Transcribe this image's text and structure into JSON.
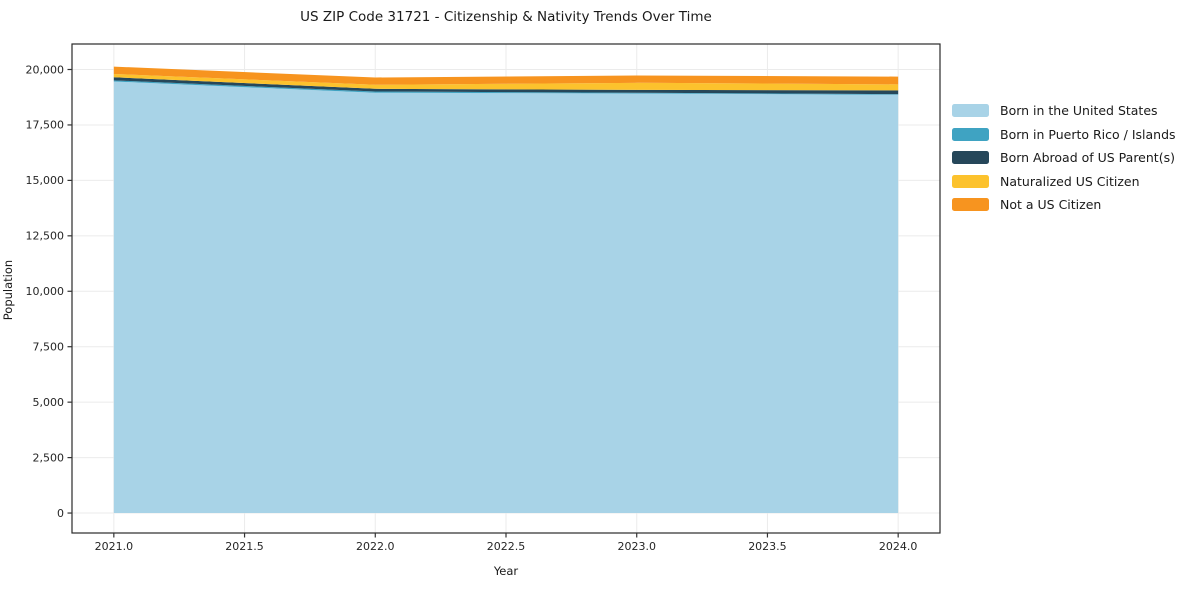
{
  "title": "US ZIP Code 31721 - Citizenship & Nativity Trends Over Time",
  "chart_data": {
    "type": "area",
    "stacked": true,
    "title": "US ZIP Code 31721 - Citizenship & Nativity Trends Over Time",
    "xlabel": "Year",
    "ylabel": "Population",
    "x": [
      2021,
      2022,
      2023,
      2024
    ],
    "series": [
      {
        "name": "Born in the United States",
        "color": "#a8d3e7",
        "values": [
          19460,
          18950,
          18920,
          18860
        ]
      },
      {
        "name": "Born in Puerto Rico / Islands",
        "color": "#3fa3c2",
        "values": [
          50,
          60,
          30,
          30
        ]
      },
      {
        "name": "Born Abroad of US Parent(s)",
        "color": "#26475a",
        "values": [
          140,
          120,
          130,
          170
        ]
      },
      {
        "name": "Naturalized US Citizen",
        "color": "#fcc22d",
        "values": [
          150,
          180,
          320,
          270
        ]
      },
      {
        "name": "Not a US Citizen",
        "color": "#f7941f",
        "values": [
          330,
          330,
          330,
          350
        ]
      }
    ],
    "x_ticks": [
      "2021.0",
      "2021.5",
      "2022.0",
      "2022.5",
      "2023.0",
      "2023.5",
      "2024.0"
    ],
    "x_tick_values": [
      2021,
      2021.5,
      2022,
      2022.5,
      2023,
      2023.5,
      2024
    ],
    "y_ticks": [
      "0",
      "2,500",
      "5,000",
      "7,500",
      "10,000",
      "12,500",
      "15,000",
      "17,500",
      "20,000"
    ],
    "y_tick_values": [
      0,
      2500,
      5000,
      7500,
      10000,
      12500,
      15000,
      17500,
      20000
    ],
    "xlim": [
      2020.84,
      2024.16
    ],
    "ylim": [
      -900,
      21150
    ],
    "grid": true,
    "legend_position": "right",
    "colors": {
      "grid": "#ebebeb",
      "spine": "#2a2a2a",
      "tick": "#333333",
      "background": "#ffffff"
    }
  }
}
